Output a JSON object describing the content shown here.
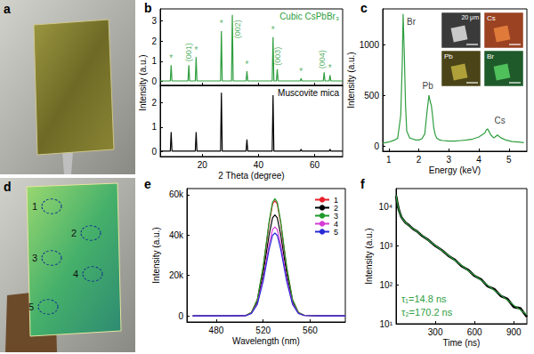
{
  "photos": [
    {
      "panel": "a"
    },
    {
      "panel": "d",
      "spots": [
        "1",
        "2",
        "3",
        "4",
        "5"
      ]
    }
  ],
  "chart_data": [
    {
      "panel": "b",
      "type": "line",
      "title": "Cubic CsPbBr₃",
      "color": "#2e9e3e",
      "x": [
        5,
        8.6,
        8.9,
        9.2,
        14.9,
        15.2,
        15.5,
        17.5,
        17.8,
        18.1,
        26.5,
        26.8,
        27.1,
        30.4,
        30.7,
        31.0,
        35.6,
        35.9,
        36.2,
        44.9,
        45.2,
        45.5,
        46.4,
        46.7,
        47.0,
        54.9,
        55.2,
        55.5,
        63.1,
        63.4,
        63.7,
        65.2,
        65.5,
        65.8,
        70
      ],
      "values": [
        0.02,
        0.02,
        0.8,
        0.02,
        0.02,
        0.8,
        0.02,
        0.02,
        1.2,
        0.02,
        0.02,
        2.5,
        0.02,
        0.02,
        3.3,
        0.02,
        0.02,
        0.5,
        0.02,
        0.02,
        2.2,
        0.02,
        0.02,
        0.6,
        0.02,
        0.02,
        0.15,
        0.02,
        0.02,
        0.45,
        0.02,
        0.02,
        0.3,
        0.02,
        0.02
      ],
      "xlim": [
        5,
        70
      ],
      "xticks": [
        20,
        40,
        60
      ],
      "ylim": [
        -0.2,
        3.6
      ],
      "yticks": [
        0,
        1,
        2,
        3
      ],
      "tick_labels": "y",
      "grid": false,
      "annotations": [
        {
          "text": "*",
          "x": 8.9,
          "y": 0.8
        },
        {
          "text": "*",
          "x": 17.8,
          "y": 1.2
        },
        {
          "text": "*",
          "x": 26.8,
          "y": 2.5
        },
        {
          "text": "*",
          "x": 35.9,
          "y": 0.5
        },
        {
          "text": "*",
          "x": 45.2,
          "y": 2.2
        },
        {
          "text": "*",
          "x": 55.2,
          "y": 0.15
        },
        {
          "text": "*",
          "x": 65.5,
          "y": 0.3
        },
        {
          "text": "(001)",
          "x": 15.2,
          "y": 0.85
        },
        {
          "text": "(002)",
          "x": 32.5,
          "y": 2.0
        },
        {
          "text": "(003)",
          "x": 46.7,
          "y": 0.65
        },
        {
          "text": "(004)",
          "x": 62.8,
          "y": 0.5
        }
      ]
    },
    {
      "type": "line",
      "title": "Muscovite mica",
      "color": "#000000",
      "x": [
        5,
        8.6,
        8.9,
        9.2,
        17.5,
        17.8,
        18.1,
        26.5,
        26.8,
        27.1,
        35.6,
        35.9,
        36.2,
        44.9,
        45.2,
        45.5,
        54.9,
        55.2,
        55.5,
        65.2,
        65.5,
        65.8,
        70
      ],
      "values": [
        0.02,
        0.02,
        0.8,
        0.02,
        0.02,
        0.8,
        0.02,
        0.02,
        2.4,
        0.02,
        0.02,
        0.5,
        0.02,
        0.02,
        2.3,
        0.02,
        0.02,
        0.1,
        0.02,
        0.02,
        0.1,
        0.02,
        0.02
      ],
      "xlabel": "2 Theta (degree)",
      "ylabel": "Intensity (a.u.)",
      "xlim": [
        5,
        70
      ],
      "xticks": [
        20,
        40,
        60
      ],
      "ylim": [
        -0.2,
        2.7
      ],
      "yticks": [
        0,
        1,
        2
      ],
      "grid": false
    },
    {
      "panel": "c",
      "type": "line",
      "color": "#2e9e3e",
      "x": [
        0.8,
        0.9,
        1.0,
        1.1,
        1.2,
        1.3,
        1.4,
        1.45,
        1.48,
        1.52,
        1.56,
        1.6,
        1.7,
        1.8,
        1.9,
        2.0,
        2.1,
        2.2,
        2.28,
        2.34,
        2.38,
        2.42,
        2.46,
        2.5,
        2.55,
        2.6,
        2.7,
        2.8,
        3.0,
        3.2,
        3.4,
        3.6,
        3.8,
        4.0,
        4.1,
        4.2,
        4.25,
        4.29,
        4.33,
        4.4,
        4.5,
        4.56,
        4.62,
        4.68,
        4.75,
        4.9,
        5.1,
        5.3,
        5.5
      ],
      "values": [
        30,
        35,
        40,
        50,
        60,
        80,
        300,
        800,
        1300,
        900,
        400,
        150,
        80,
        70,
        60,
        60,
        70,
        120,
        350,
        500,
        440,
        400,
        300,
        180,
        110,
        80,
        60,
        55,
        50,
        50,
        55,
        60,
        70,
        90,
        110,
        130,
        160,
        170,
        150,
        110,
        80,
        95,
        110,
        95,
        80,
        60,
        45,
        40,
        35
      ],
      "xlabel": "Energy (keV)",
      "ylabel": "Intensity (a.u.)",
      "xlim": [
        0.8,
        5.6
      ],
      "xticks": [
        1,
        2,
        3,
        4,
        5
      ],
      "ylim": [
        -50,
        1350
      ],
      "yticks": [
        0,
        500,
        1000
      ],
      "grid": false,
      "annotations": [
        {
          "text": "Br",
          "x": 1.75,
          "y": 1150
        },
        {
          "text": "Pb",
          "x": 2.3,
          "y": 520
        },
        {
          "text": "Cs",
          "x": 4.7,
          "y": 180
        }
      ],
      "inset": {
        "scale_bar": "20 μm",
        "maps": [
          "Cs",
          "Pb",
          "Br"
        ]
      }
    },
    {
      "panel": "e",
      "type": "line",
      "x": [
        460,
        490,
        505,
        510,
        515,
        520,
        525,
        528,
        530,
        532,
        535,
        540,
        545,
        550,
        555,
        570,
        590
      ],
      "series": [
        {
          "name": "1",
          "color": "#e8202a",
          "values": [
            0,
            0,
            200,
            1700,
            8000,
            23900,
            45600,
            55300,
            57000,
            55300,
            45600,
            23900,
            8000,
            1700,
            300,
            0,
            0
          ]
        },
        {
          "name": "2",
          "color": "#000000",
          "values": [
            0,
            0,
            200,
            1500,
            7000,
            21000,
            40000,
            48500,
            50000,
            48500,
            40000,
            21000,
            7000,
            1500,
            300,
            0,
            0
          ]
        },
        {
          "name": "3",
          "color": "#1f9a2a",
          "values": [
            0,
            0,
            200,
            1700,
            8100,
            24400,
            46400,
            56300,
            58000,
            56300,
            46400,
            24400,
            8100,
            1700,
            300,
            0,
            0
          ]
        },
        {
          "name": "4",
          "color": "#d63cd6",
          "values": [
            0,
            0,
            100,
            1300,
            6200,
            18500,
            35200,
            42700,
            44000,
            42700,
            35200,
            18500,
            6200,
            1300,
            200,
            0,
            0
          ]
        },
        {
          "name": "5",
          "color": "#2a2ad6",
          "values": [
            0,
            0,
            100,
            1200,
            5700,
            17200,
            32800,
            39800,
            41000,
            39800,
            32800,
            17200,
            5700,
            1200,
            200,
            0,
            0
          ]
        }
      ],
      "xlabel": "Wavelength (nm)",
      "ylabel": "Intensity (a.u.)",
      "xlim": [
        455,
        590
      ],
      "xticks": [
        480,
        520,
        560
      ],
      "ylim": [
        -3000,
        63000
      ],
      "yticks": [
        0,
        {
          "value": 20000,
          "label": "20k"
        },
        {
          "value": 40000,
          "label": "40k"
        },
        {
          "value": 60000,
          "label": "60k"
        }
      ],
      "legend": "upper right",
      "grid": false
    },
    {
      "panel": "f",
      "type": "line",
      "log": "y",
      "x": [
        0,
        5,
        10,
        15,
        20,
        30,
        40,
        50,
        70,
        100,
        130,
        160,
        200,
        250,
        300,
        350,
        400,
        450,
        500,
        550,
        600,
        650,
        700,
        750,
        800,
        850,
        900,
        950,
        1000
      ],
      "series": [
        {
          "color": "#000000",
          "values": [
            19500,
            16200,
            12500,
            10800,
            8800,
            7000,
            5600,
            5000,
            4050,
            3400,
            2750,
            2380,
            1820,
            1400,
            1010,
            780,
            560,
            440,
            305,
            245,
            170,
            138,
            92,
            78,
            52,
            44,
            27,
            25,
            15
          ]
        },
        {
          "color": "#2e9e3e",
          "values": [
            20000,
            15800,
            12800,
            10600,
            8960,
            6880,
            5680,
            4950,
            4100,
            3350,
            2800,
            2350,
            1850,
            1380,
            1030,
            768,
            572,
            427,
            318,
            237,
            176,
            132,
            98,
            73,
            55,
            41,
            30,
            23,
            17
          ]
        }
      ],
      "xlabel": "Time (ns)",
      "ylabel": "Intensity (a.u.)",
      "xlim": [
        0,
        1000
      ],
      "xticks": [
        300,
        600,
        900
      ],
      "ylim": [
        10,
        30000
      ],
      "yticks": [
        {
          "value": 10,
          "label": "10¹"
        },
        {
          "value": 100,
          "label": "10²"
        },
        {
          "value": 1000,
          "label": "10³"
        },
        {
          "value": 10000,
          "label": "10⁴"
        }
      ],
      "grid": false,
      "annotations": [
        "τ₁=14.8 ns",
        "τ₂=170.2 ns"
      ]
    }
  ]
}
